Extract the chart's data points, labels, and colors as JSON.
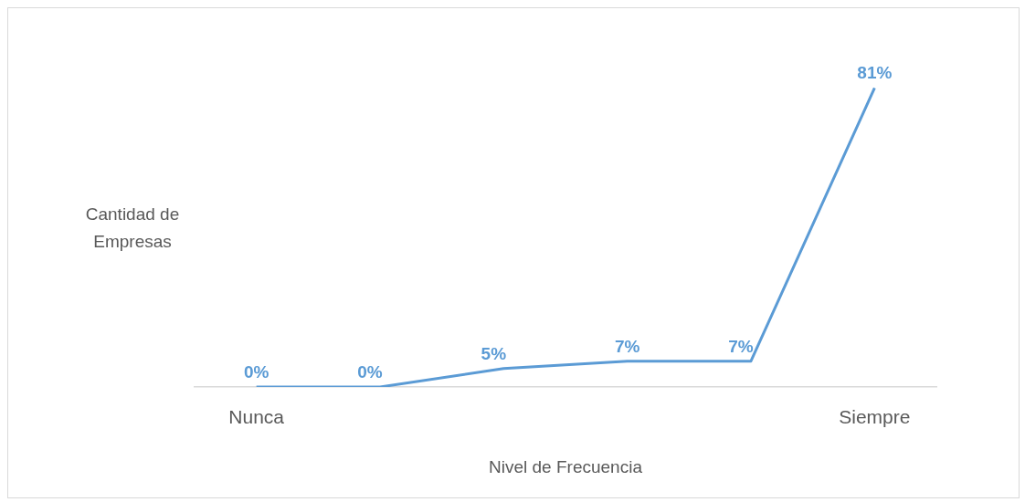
{
  "chart_data": {
    "type": "line",
    "xlabel": "Nivel de Frecuencia",
    "ylabel": "Cantidad de Empresas",
    "categories": [
      "Nunca",
      null,
      null,
      null,
      null,
      "Siempre"
    ],
    "series": [
      {
        "color": "#5b9bd5",
        "values": [
          0,
          0,
          5,
          7,
          7,
          81
        ],
        "value_labels": [
          "0%",
          "0%",
          "5%",
          "7%",
          "7%",
          "81%"
        ]
      }
    ],
    "marker": "none",
    "line_style": "solid"
  }
}
